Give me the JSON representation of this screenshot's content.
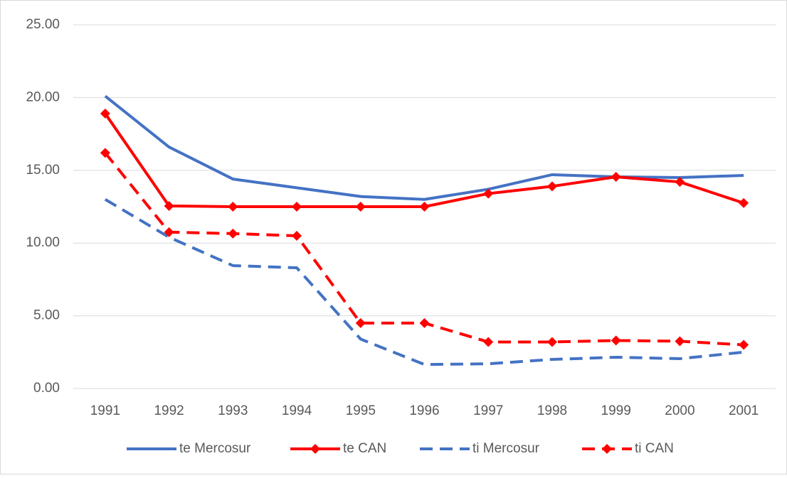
{
  "chart_data": {
    "type": "line",
    "categories": [
      "1991",
      "1992",
      "1993",
      "1994",
      "1995",
      "1996",
      "1997",
      "1998",
      "1999",
      "2000",
      "2001"
    ],
    "series": [
      {
        "name": "te Mercosur",
        "color": "#4472c4",
        "dashed": false,
        "marker": "none",
        "values": [
          20.1,
          16.6,
          14.4,
          13.8,
          13.2,
          13.0,
          13.7,
          14.7,
          14.55,
          14.5,
          14.65
        ]
      },
      {
        "name": "te CAN",
        "color": "#ff0000",
        "dashed": false,
        "marker": "diamond",
        "values": [
          18.9,
          12.55,
          12.5,
          12.5,
          12.5,
          12.5,
          13.4,
          13.9,
          14.55,
          14.2,
          12.75
        ]
      },
      {
        "name": "ti Mercosur",
        "color": "#4472c4",
        "dashed": true,
        "marker": "none",
        "values": [
          13.0,
          10.4,
          8.45,
          8.3,
          3.4,
          1.65,
          1.7,
          2.0,
          2.15,
          2.05,
          2.5
        ]
      },
      {
        "name": "ti CAN",
        "color": "#ff0000",
        "dashed": true,
        "marker": "diamond",
        "values": [
          16.2,
          10.75,
          10.65,
          10.5,
          4.5,
          4.5,
          3.2,
          3.2,
          3.3,
          3.25,
          3.0
        ]
      }
    ],
    "ylim": [
      0,
      25
    ],
    "yticks": [
      {
        "value": 0,
        "label": "0.00"
      },
      {
        "value": 5,
        "label": "5.00"
      },
      {
        "value": 10,
        "label": "10.00"
      },
      {
        "value": 15,
        "label": "15.00"
      },
      {
        "value": 20,
        "label": "20.00"
      },
      {
        "value": 25,
        "label": "25.00"
      }
    ],
    "grid": true,
    "legend": "bottom"
  }
}
